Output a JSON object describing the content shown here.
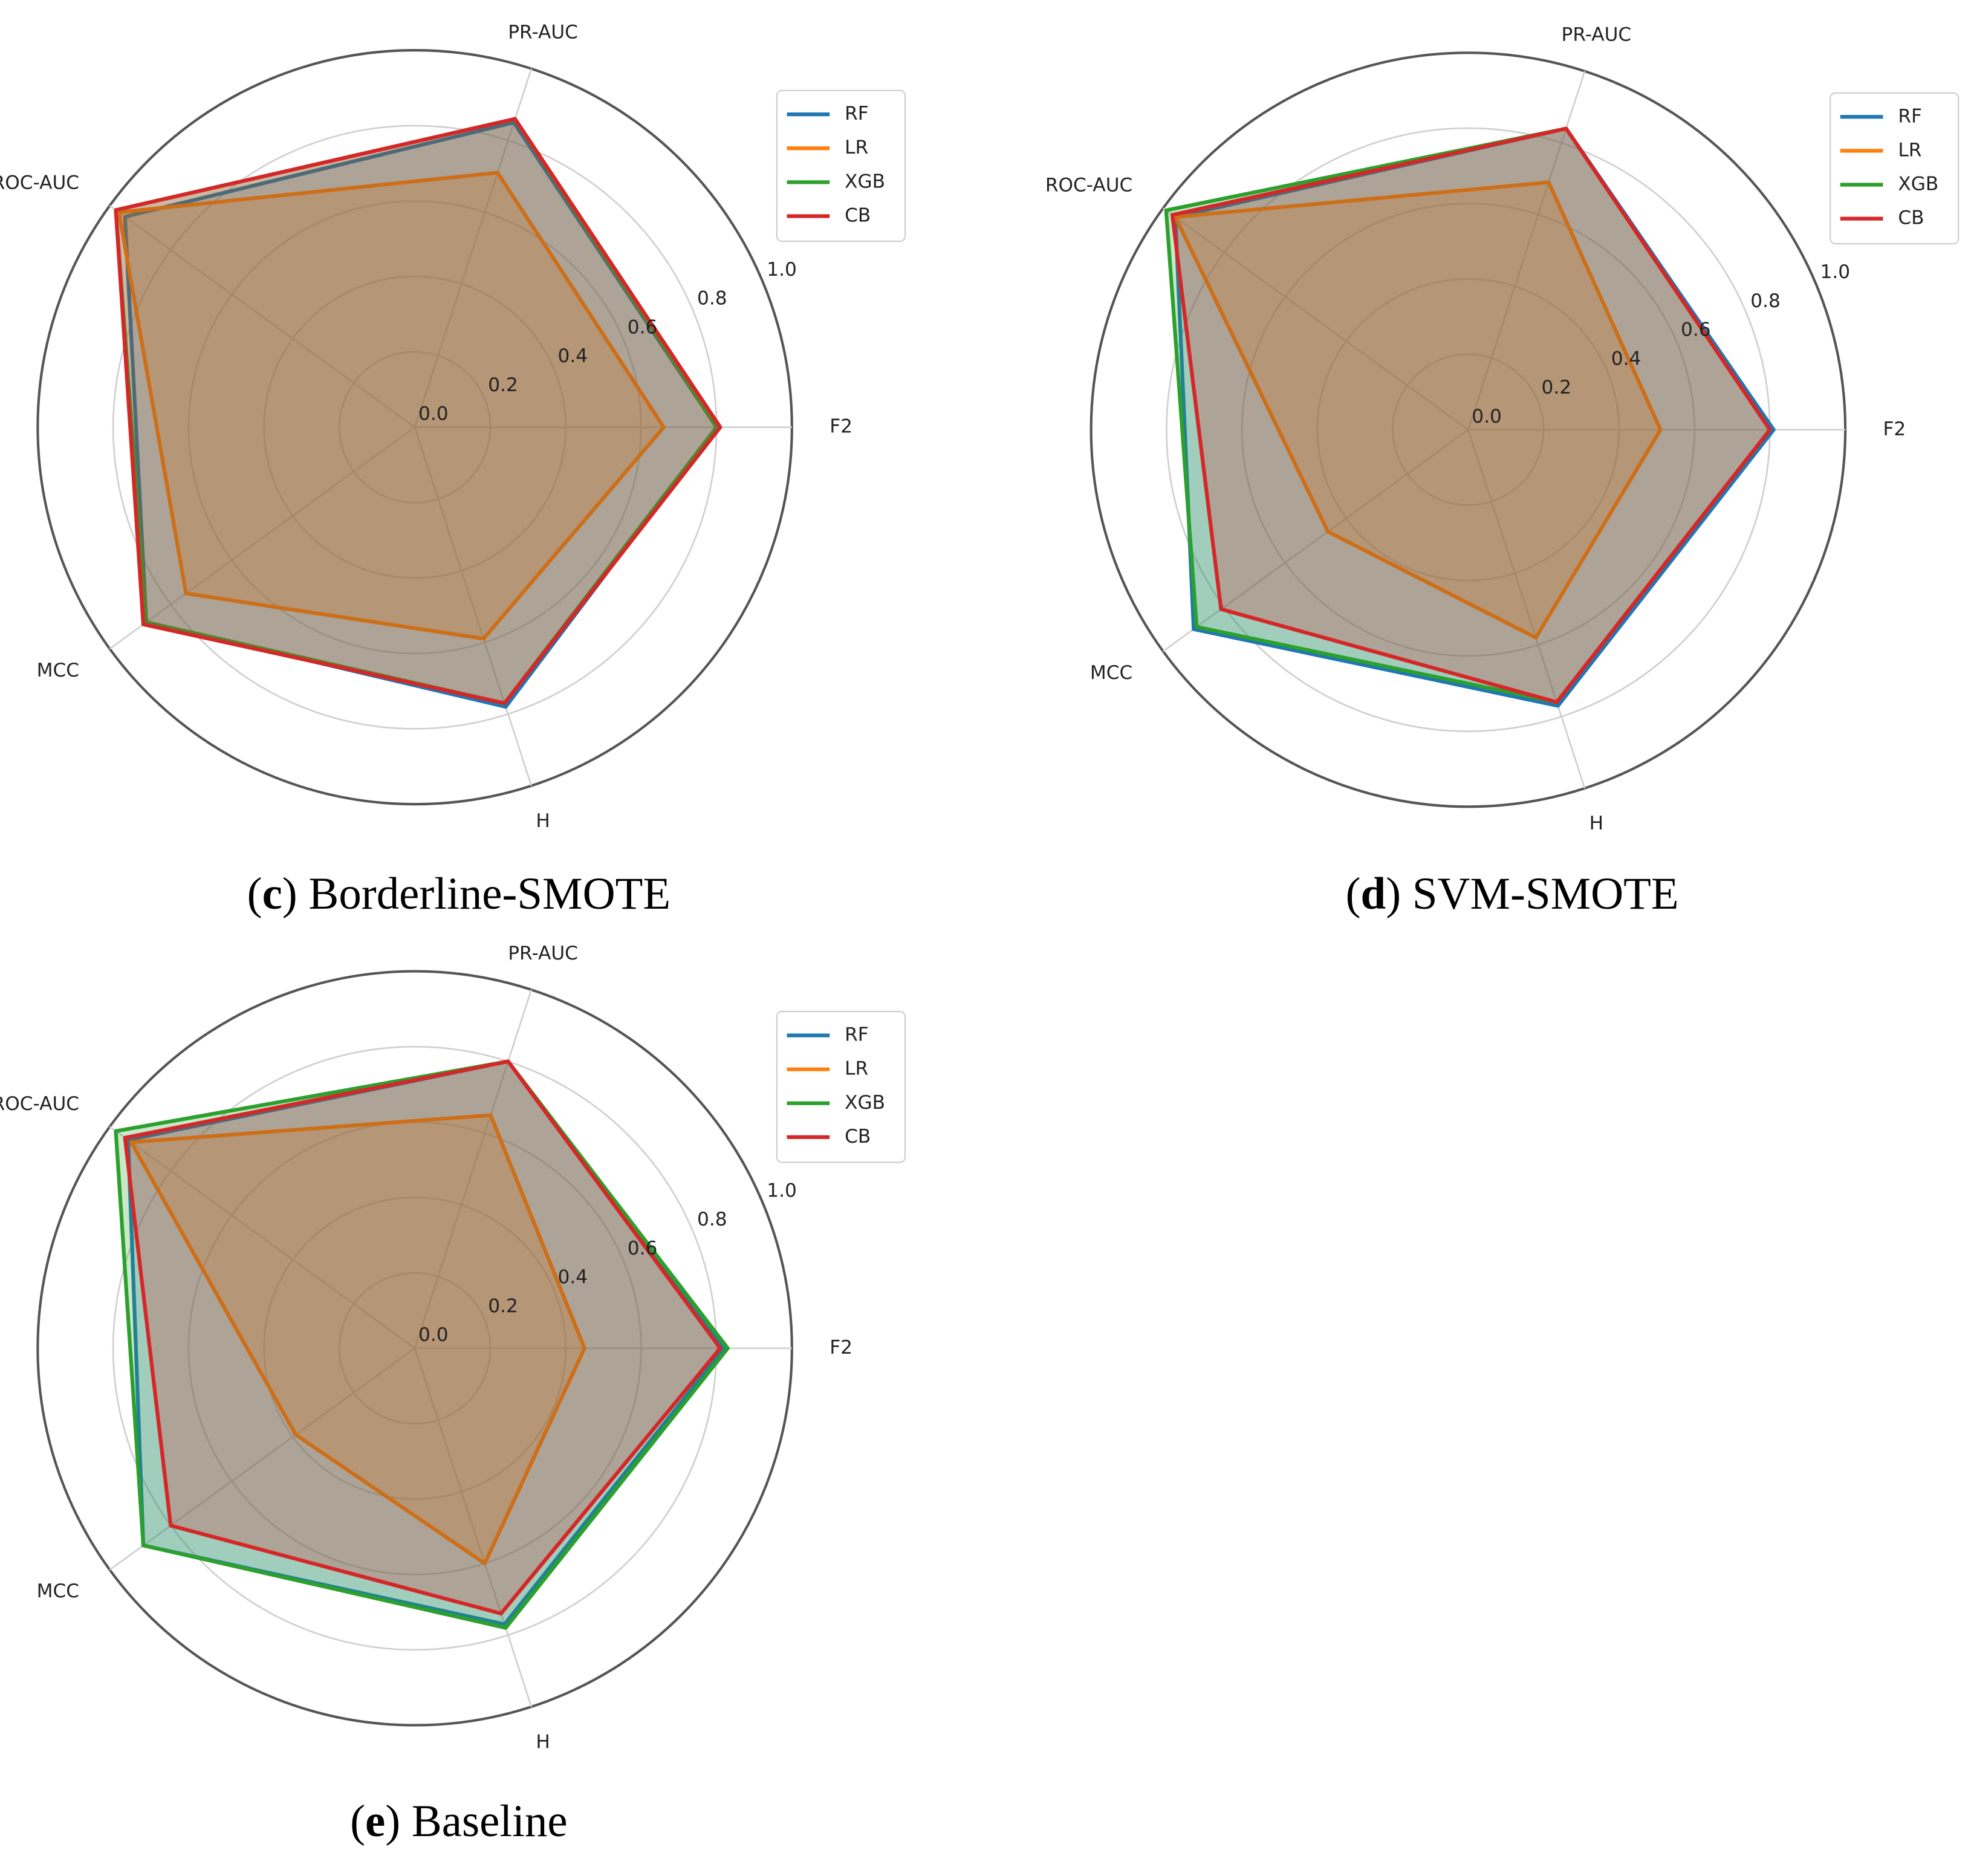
{
  "chart_data": [
    {
      "type": "radar",
      "caption_parts": [
        "(",
        "c",
        ") Borderline-SMOTE"
      ],
      "categories": [
        "F2",
        "PR-AUC",
        "ROC-AUC",
        "MCC",
        "H"
      ],
      "rlim": [
        0,
        1
      ],
      "rticks": [
        {
          "value": 0,
          "label": "0.0"
        },
        0.2,
        0.4,
        0.6,
        0.8,
        {
          "value": 1,
          "label": "1.0"
        }
      ],
      "grid": true,
      "legend": "upper right",
      "series": [
        {
          "name": "RF",
          "color": "#1f77b4",
          "values": [
            0.8,
            0.85,
            0.95,
            0.88,
            0.78
          ]
        },
        {
          "name": "LR",
          "color": "#ff7f0e",
          "values": [
            0.66,
            0.71,
            0.97,
            0.75,
            0.59
          ]
        },
        {
          "name": "XGB",
          "color": "#2ca02c",
          "values": [
            0.8,
            0.86,
            0.98,
            0.88,
            0.77
          ]
        },
        {
          "name": "CB",
          "color": "#d62728",
          "values": [
            0.81,
            0.86,
            0.98,
            0.89,
            0.77
          ]
        }
      ]
    },
    {
      "type": "radar",
      "caption_parts": [
        "(",
        "d",
        ") SVM-SMOTE"
      ],
      "categories": [
        "F2",
        "PR-AUC",
        "ROC-AUC",
        "MCC",
        "H"
      ],
      "rlim": [
        0,
        1
      ],
      "rticks": [
        {
          "value": 0,
          "label": "0.0"
        },
        0.2,
        0.4,
        0.6,
        0.8,
        {
          "value": 1,
          "label": "1.0"
        }
      ],
      "grid": true,
      "legend": "upper right",
      "series": [
        {
          "name": "RF",
          "color": "#1f77b4",
          "values": [
            0.81,
            0.84,
            0.96,
            0.9,
            0.77
          ]
        },
        {
          "name": "LR",
          "color": "#ff7f0e",
          "values": [
            0.51,
            0.69,
            0.96,
            0.46,
            0.58
          ]
        },
        {
          "name": "XGB",
          "color": "#2ca02c",
          "values": [
            0.8,
            0.84,
            0.99,
            0.89,
            0.76
          ]
        },
        {
          "name": "CB",
          "color": "#d62728",
          "values": [
            0.8,
            0.84,
            0.97,
            0.81,
            0.76
          ]
        }
      ]
    },
    {
      "type": "radar",
      "caption_parts": [
        "(",
        "e",
        ") Baseline"
      ],
      "categories": [
        "F2",
        "PR-AUC",
        "ROC-AUC",
        "MCC",
        "H"
      ],
      "rlim": [
        0,
        1
      ],
      "rticks": [
        {
          "value": 0,
          "label": "0.0"
        },
        0.2,
        0.4,
        0.6,
        0.8,
        {
          "value": 1,
          "label": "1.0"
        }
      ],
      "grid": true,
      "legend": "upper right",
      "series": [
        {
          "name": "RF",
          "color": "#1f77b4",
          "values": [
            0.82,
            0.8,
            0.94,
            0.89,
            0.77
          ]
        },
        {
          "name": "LR",
          "color": "#ff7f0e",
          "values": [
            0.45,
            0.65,
            0.93,
            0.39,
            0.6
          ]
        },
        {
          "name": "XGB",
          "color": "#2ca02c",
          "values": [
            0.83,
            0.8,
            0.98,
            0.89,
            0.78
          ]
        },
        {
          "name": "CB",
          "color": "#d62728",
          "values": [
            0.81,
            0.8,
            0.95,
            0.8,
            0.74
          ]
        }
      ]
    }
  ]
}
